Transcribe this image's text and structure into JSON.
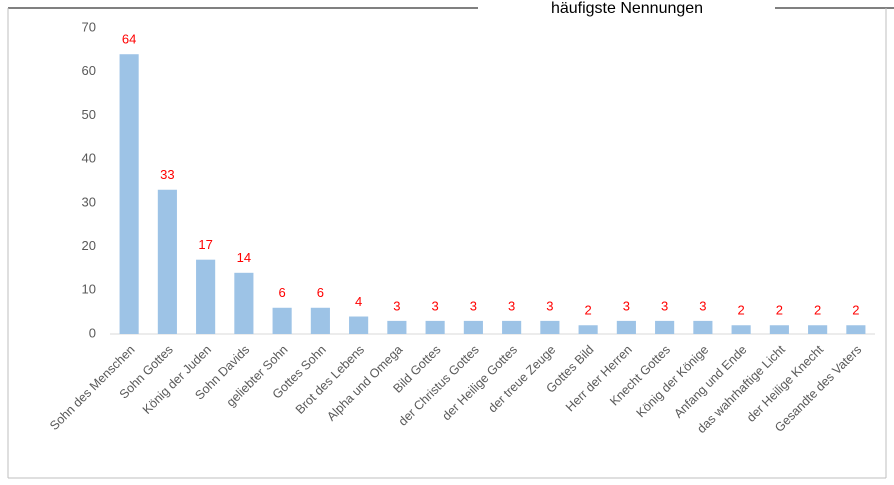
{
  "chart_data": {
    "type": "bar",
    "title": "häufigste Nennungen",
    "categories": [
      "Sohn des Menschen",
      "Sohn Gottes",
      "König der Juden",
      "Sohn Davids",
      "geliebter Sohn",
      "Gottes Sohn",
      "Brot des Lebens",
      "Alpha und Omega",
      "Bild Gottes",
      "der Christus Gottes",
      "der Heilige Gottes",
      "der treue Zeuge",
      "Gottes Bild",
      "Herr der Herren",
      "Knecht Gottes",
      "König der Könige",
      "Anfang und Ende",
      "das wahrhaftige Licht",
      "der Heilige Knecht",
      "Gesandte des Vaters"
    ],
    "values": [
      64,
      33,
      17,
      14,
      6,
      6,
      4,
      3,
      3,
      3,
      3,
      3,
      2,
      3,
      3,
      3,
      2,
      2,
      2,
      2
    ],
    "color": "#9dc3e6",
    "value_label_color": "#ff0000",
    "ylim": [
      0,
      70
    ],
    "yticks": [
      0,
      10,
      20,
      30,
      40,
      50,
      60,
      70
    ],
    "grid": false
  }
}
